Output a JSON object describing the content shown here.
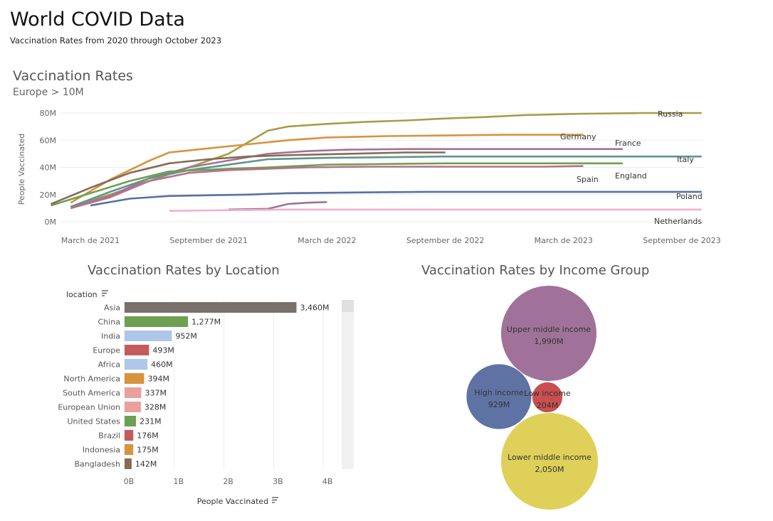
{
  "header": {
    "title": "World COVID Data",
    "subtitle": "Vaccination Rates from 2020 through October 2023"
  },
  "line_chart": {
    "title": "Vaccination Rates",
    "subtitle": "Europe > 10M",
    "ylabel": "People Vaccinated"
  },
  "bar_chart": {
    "title": "Vaccination Rates by Location",
    "row_header": "location",
    "xlabel": "People Vaccinated"
  },
  "bubble_chart": {
    "title": "Vaccination Rates by Income Group"
  },
  "chart_data": [
    {
      "type": "line",
      "title": "Vaccination Rates",
      "subtitle": "Europe > 10M",
      "ylabel": "People Vaccinated",
      "xlabel": "",
      "x_ticks": [
        "March de 2021",
        "September de 2021",
        "March de 2022",
        "September de 2022",
        "March de 2023",
        "September de 2023"
      ],
      "y_ticks": [
        "0M",
        "20M",
        "40M",
        "60M",
        "80M"
      ],
      "ylim": [
        0,
        80
      ],
      "x_range": [
        "2021-01",
        "2023-10"
      ],
      "grid": true,
      "series": [
        {
          "name": "Russia",
          "color": "#a69e43",
          "points": [
            [
              "2021-02",
              11
            ],
            [
              "2021-04",
              20
            ],
            [
              "2021-06",
              30
            ],
            [
              "2021-08",
              40
            ],
            [
              "2021-10",
              50
            ],
            [
              "2021-12",
              67
            ],
            [
              "2022-01",
              70
            ],
            [
              "2022-03",
              72
            ],
            [
              "2022-05",
              73.5
            ],
            [
              "2022-07",
              74.5
            ],
            [
              "2022-09",
              76
            ],
            [
              "2022-11",
              77
            ],
            [
              "2023-01",
              78.5
            ],
            [
              "2023-04",
              79.5
            ],
            [
              "2023-07",
              80
            ],
            [
              "2023-10",
              80
            ]
          ]
        },
        {
          "name": "Germany",
          "color": "#d8933d",
          "points": [
            [
              "2021-02",
              14
            ],
            [
              "2021-04",
              31
            ],
            [
              "2021-06",
              45
            ],
            [
              "2021-07",
              51
            ],
            [
              "2021-09",
              54
            ],
            [
              "2021-11",
              57
            ],
            [
              "2022-01",
              60
            ],
            [
              "2022-03",
              62
            ],
            [
              "2022-06",
              63
            ],
            [
              "2022-09",
              63.5
            ],
            [
              "2022-12",
              64
            ],
            [
              "2023-04",
              64
            ]
          ]
        },
        {
          "name": "France",
          "color": "#a07299",
          "points": [
            [
              "2021-02",
              10
            ],
            [
              "2021-04",
              19
            ],
            [
              "2021-06",
              32
            ],
            [
              "2021-08",
              40
            ],
            [
              "2021-10",
              45
            ],
            [
              "2021-12",
              50
            ],
            [
              "2022-02",
              52
            ],
            [
              "2022-04",
              53
            ],
            [
              "2022-07",
              53.5
            ],
            [
              "2022-10",
              53.5
            ],
            [
              "2023-01",
              53.5
            ],
            [
              "2023-06",
              53.5
            ]
          ]
        },
        {
          "name": "Italy",
          "color": "#60958d",
          "points": [
            [
              "2021-02",
              11
            ],
            [
              "2021-04",
              22
            ],
            [
              "2021-06",
              32
            ],
            [
              "2021-08",
              38
            ],
            [
              "2021-10",
              42
            ],
            [
              "2021-12",
              46
            ],
            [
              "2022-03",
              47
            ],
            [
              "2022-06",
              47.5
            ],
            [
              "2022-09",
              48
            ],
            [
              "2022-12",
              48
            ],
            [
              "2023-04",
              48
            ],
            [
              "2023-10",
              48
            ]
          ]
        },
        {
          "name": "England",
          "color": "#6e9f52",
          "points": [
            [
              "2021-01",
              12
            ],
            [
              "2021-03",
              21
            ],
            [
              "2021-05",
              30
            ],
            [
              "2021-07",
              37
            ],
            [
              "2021-10",
              39
            ],
            [
              "2021-12",
              40
            ],
            [
              "2022-03",
              42
            ],
            [
              "2022-06",
              42.5
            ],
            [
              "2022-09",
              43
            ],
            [
              "2022-12",
              43
            ],
            [
              "2023-04",
              43
            ],
            [
              "2023-06",
              43
            ]
          ]
        },
        {
          "name": "Spain",
          "color": "#b7708b",
          "points": [
            [
              "2021-02",
              10
            ],
            [
              "2021-04",
              18
            ],
            [
              "2021-06",
              30
            ],
            [
              "2021-08",
              36
            ],
            [
              "2021-10",
              38
            ],
            [
              "2021-12",
              39
            ],
            [
              "2022-02",
              40
            ],
            [
              "2022-05",
              40.5
            ],
            [
              "2022-08",
              40.5
            ],
            [
              "2022-11",
              40.5
            ],
            [
              "2023-02",
              40.5
            ],
            [
              "2023-04",
              41
            ]
          ]
        },
        {
          "name": "",
          "color": "#876b55",
          "points": [
            [
              "2021-01",
              13
            ],
            [
              "2021-03",
              25
            ],
            [
              "2021-05",
              36
            ],
            [
              "2021-07",
              43
            ],
            [
              "2021-09",
              46
            ],
            [
              "2021-11",
              48
            ],
            [
              "2022-01",
              49
            ],
            [
              "2022-04",
              50
            ],
            [
              "2022-07",
              51
            ],
            [
              "2022-09",
              51
            ]
          ]
        },
        {
          "name": "Poland",
          "color": "#5671a3",
          "points": [
            [
              "2021-03",
              12
            ],
            [
              "2021-05",
              17
            ],
            [
              "2021-07",
              19
            ],
            [
              "2021-09",
              19.5
            ],
            [
              "2021-11",
              20
            ],
            [
              "2022-01",
              21
            ],
            [
              "2022-04",
              21.5
            ],
            [
              "2022-08",
              22
            ],
            [
              "2022-12",
              22
            ],
            [
              "2023-04",
              22
            ],
            [
              "2023-10",
              22
            ]
          ]
        },
        {
          "name": "",
          "color": "#a07299",
          "points": [
            [
              "2021-10",
              9
            ],
            [
              "2021-12",
              9.5
            ],
            [
              "2022-01",
              13
            ],
            [
              "2022-02",
              14
            ],
            [
              "2022-03",
              14.5
            ]
          ]
        },
        {
          "name": "Netherlands",
          "color": "#eeb2cc",
          "points": [
            [
              "2021-07",
              8
            ],
            [
              "2021-10",
              8.5
            ],
            [
              "2022-01",
              9
            ],
            [
              "2022-06",
              9
            ],
            [
              "2022-12",
              9
            ],
            [
              "2023-06",
              9
            ],
            [
              "2023-10",
              9
            ]
          ]
        }
      ]
    },
    {
      "type": "bar",
      "title": "Vaccination Rates by Location",
      "xlabel": "People Vaccinated",
      "ylabel": "location",
      "x_ticks": [
        "0B",
        "1B",
        "2B",
        "3B",
        "4B"
      ],
      "xlim": [
        0,
        4
      ],
      "categories": [
        "Asia",
        "China",
        "India",
        "Europe",
        "Africa",
        "North America",
        "South America",
        "European Union",
        "United States",
        "Brazil",
        "Indonesia",
        "Bangladesh"
      ],
      "values": [
        3460,
        1277,
        952,
        493,
        460,
        394,
        337,
        328,
        231,
        176,
        175,
        142
      ],
      "value_labels": [
        "3,460M",
        "1,277M",
        "952M",
        "493M",
        "460M",
        "394M",
        "337M",
        "328M",
        "231M",
        "176M",
        "175M",
        "142M"
      ],
      "colors": [
        "#7b706b",
        "#6e9f52",
        "#aec6e8",
        "#c45b5b",
        "#aec6e8",
        "#d8933d",
        "#e8a09d",
        "#e8a09d",
        "#6e9f52",
        "#c45b5b",
        "#d8933d",
        "#876b55"
      ]
    },
    {
      "type": "bubble",
      "title": "Vaccination Rates by Income Group",
      "items": [
        {
          "name": "Upper middle income",
          "value": 1990,
          "label": "1,990M",
          "color": "#a07299"
        },
        {
          "name": "High income",
          "value": 929,
          "label": "929M",
          "color": "#5e72a4"
        },
        {
          "name": "Low income",
          "value": 204,
          "label": "204M",
          "color": "#c94f50"
        },
        {
          "name": "Lower middle income",
          "value": 2050,
          "label": "2,050M",
          "color": "#dfd05a"
        }
      ]
    }
  ]
}
